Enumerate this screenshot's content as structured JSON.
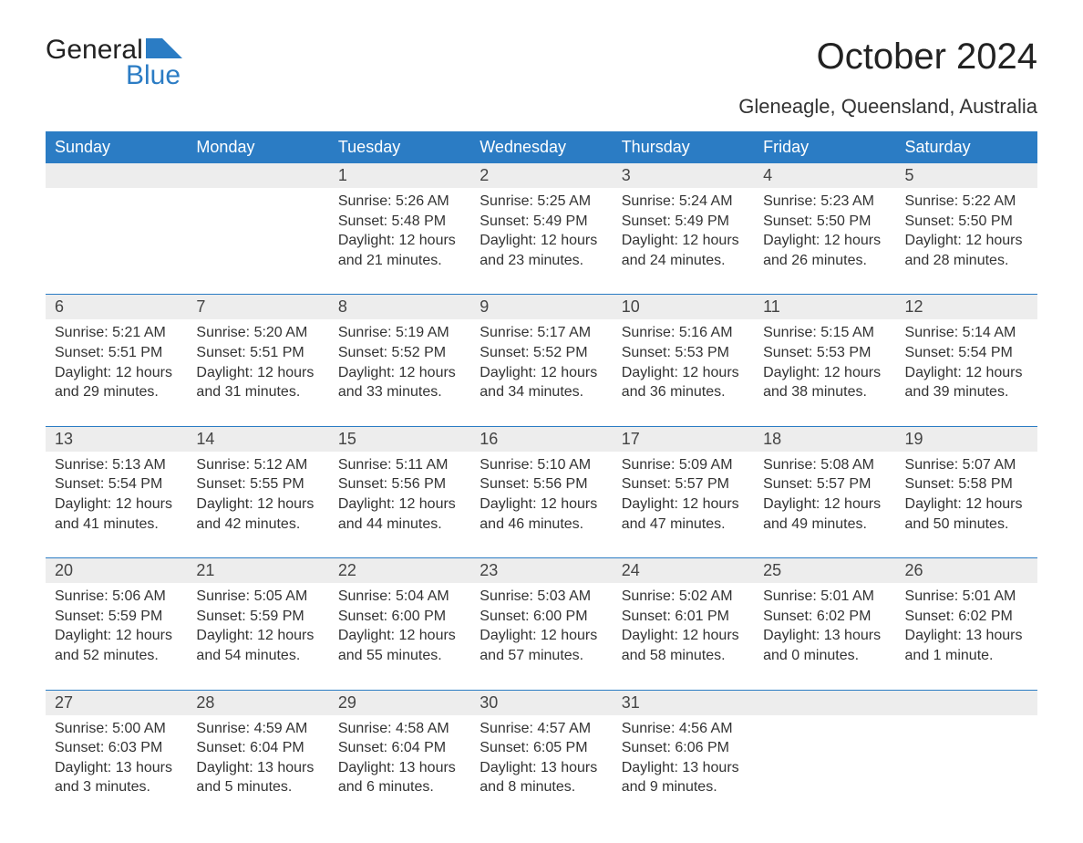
{
  "logo": {
    "word1": "General",
    "word2": "Blue",
    "icon_color": "#2b7cc4"
  },
  "title": "October 2024",
  "subtitle": "Gleneagle, Queensland, Australia",
  "colors": {
    "header_bg": "#2b7cc4",
    "header_text": "#ffffff",
    "daynum_bg": "#ededed",
    "row_sep": "#2b7cc4",
    "body_text": "#333333",
    "page_bg": "#ffffff"
  },
  "weekdays": [
    "Sunday",
    "Monday",
    "Tuesday",
    "Wednesday",
    "Thursday",
    "Friday",
    "Saturday"
  ],
  "weeks": [
    [
      null,
      null,
      {
        "n": "1",
        "sunrise": "5:26 AM",
        "sunset": "5:48 PM",
        "daylight": "12 hours and 21 minutes."
      },
      {
        "n": "2",
        "sunrise": "5:25 AM",
        "sunset": "5:49 PM",
        "daylight": "12 hours and 23 minutes."
      },
      {
        "n": "3",
        "sunrise": "5:24 AM",
        "sunset": "5:49 PM",
        "daylight": "12 hours and 24 minutes."
      },
      {
        "n": "4",
        "sunrise": "5:23 AM",
        "sunset": "5:50 PM",
        "daylight": "12 hours and 26 minutes."
      },
      {
        "n": "5",
        "sunrise": "5:22 AM",
        "sunset": "5:50 PM",
        "daylight": "12 hours and 28 minutes."
      }
    ],
    [
      {
        "n": "6",
        "sunrise": "5:21 AM",
        "sunset": "5:51 PM",
        "daylight": "12 hours and 29 minutes."
      },
      {
        "n": "7",
        "sunrise": "5:20 AM",
        "sunset": "5:51 PM",
        "daylight": "12 hours and 31 minutes."
      },
      {
        "n": "8",
        "sunrise": "5:19 AM",
        "sunset": "5:52 PM",
        "daylight": "12 hours and 33 minutes."
      },
      {
        "n": "9",
        "sunrise": "5:17 AM",
        "sunset": "5:52 PM",
        "daylight": "12 hours and 34 minutes."
      },
      {
        "n": "10",
        "sunrise": "5:16 AM",
        "sunset": "5:53 PM",
        "daylight": "12 hours and 36 minutes."
      },
      {
        "n": "11",
        "sunrise": "5:15 AM",
        "sunset": "5:53 PM",
        "daylight": "12 hours and 38 minutes."
      },
      {
        "n": "12",
        "sunrise": "5:14 AM",
        "sunset": "5:54 PM",
        "daylight": "12 hours and 39 minutes."
      }
    ],
    [
      {
        "n": "13",
        "sunrise": "5:13 AM",
        "sunset": "5:54 PM",
        "daylight": "12 hours and 41 minutes."
      },
      {
        "n": "14",
        "sunrise": "5:12 AM",
        "sunset": "5:55 PM",
        "daylight": "12 hours and 42 minutes."
      },
      {
        "n": "15",
        "sunrise": "5:11 AM",
        "sunset": "5:56 PM",
        "daylight": "12 hours and 44 minutes."
      },
      {
        "n": "16",
        "sunrise": "5:10 AM",
        "sunset": "5:56 PM",
        "daylight": "12 hours and 46 minutes."
      },
      {
        "n": "17",
        "sunrise": "5:09 AM",
        "sunset": "5:57 PM",
        "daylight": "12 hours and 47 minutes."
      },
      {
        "n": "18",
        "sunrise": "5:08 AM",
        "sunset": "5:57 PM",
        "daylight": "12 hours and 49 minutes."
      },
      {
        "n": "19",
        "sunrise": "5:07 AM",
        "sunset": "5:58 PM",
        "daylight": "12 hours and 50 minutes."
      }
    ],
    [
      {
        "n": "20",
        "sunrise": "5:06 AM",
        "sunset": "5:59 PM",
        "daylight": "12 hours and 52 minutes."
      },
      {
        "n": "21",
        "sunrise": "5:05 AM",
        "sunset": "5:59 PM",
        "daylight": "12 hours and 54 minutes."
      },
      {
        "n": "22",
        "sunrise": "5:04 AM",
        "sunset": "6:00 PM",
        "daylight": "12 hours and 55 minutes."
      },
      {
        "n": "23",
        "sunrise": "5:03 AM",
        "sunset": "6:00 PM",
        "daylight": "12 hours and 57 minutes."
      },
      {
        "n": "24",
        "sunrise": "5:02 AM",
        "sunset": "6:01 PM",
        "daylight": "12 hours and 58 minutes."
      },
      {
        "n": "25",
        "sunrise": "5:01 AM",
        "sunset": "6:02 PM",
        "daylight": "13 hours and 0 minutes."
      },
      {
        "n": "26",
        "sunrise": "5:01 AM",
        "sunset": "6:02 PM",
        "daylight": "13 hours and 1 minute."
      }
    ],
    [
      {
        "n": "27",
        "sunrise": "5:00 AM",
        "sunset": "6:03 PM",
        "daylight": "13 hours and 3 minutes."
      },
      {
        "n": "28",
        "sunrise": "4:59 AM",
        "sunset": "6:04 PM",
        "daylight": "13 hours and 5 minutes."
      },
      {
        "n": "29",
        "sunrise": "4:58 AM",
        "sunset": "6:04 PM",
        "daylight": "13 hours and 6 minutes."
      },
      {
        "n": "30",
        "sunrise": "4:57 AM",
        "sunset": "6:05 PM",
        "daylight": "13 hours and 8 minutes."
      },
      {
        "n": "31",
        "sunrise": "4:56 AM",
        "sunset": "6:06 PM",
        "daylight": "13 hours and 9 minutes."
      },
      null,
      null
    ]
  ],
  "labels": {
    "sunrise": "Sunrise: ",
    "sunset": "Sunset: ",
    "daylight": "Daylight: "
  }
}
